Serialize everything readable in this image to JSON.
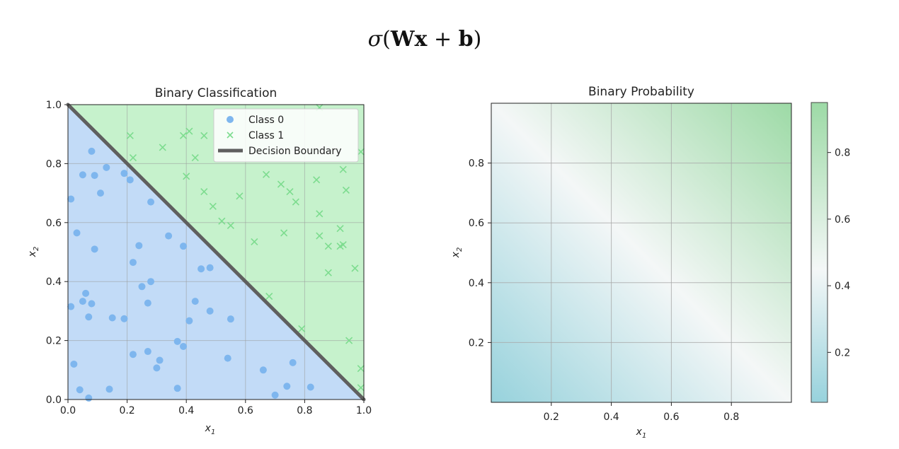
{
  "formula": {
    "sigma": "σ",
    "open": "(",
    "W": "W",
    "x": "x",
    "plus": " + ",
    "b": "b",
    "close": ")"
  },
  "colors": {
    "class0": "#7eb6ee",
    "class1": "#7ddc8f",
    "region0": "#c2dbf7",
    "region1": "#c6f2cc",
    "boundary": "#5f5f5f",
    "prob_low": "#97d2dc",
    "prob_mid": "#f4f7f7",
    "prob_high": "#9ddaa6"
  },
  "chart_data": [
    {
      "type": "scatter",
      "title": "Binary Classification",
      "xlabel": "x1",
      "ylabel": "x2",
      "xlim": [
        0.0,
        1.0
      ],
      "ylim": [
        0.0,
        1.0
      ],
      "xticks": [
        "0.0",
        "0.2",
        "0.4",
        "0.6",
        "0.8",
        "1.0"
      ],
      "yticks": [
        "0.0",
        "0.2",
        "0.4",
        "0.6",
        "0.8",
        "1.0"
      ],
      "grid": true,
      "legend_position": "top-right",
      "legend": [
        "Class 0",
        "Class 1",
        "Decision Boundary"
      ],
      "regions": [
        {
          "name": "Class 0",
          "below_line": true
        },
        {
          "name": "Class 1",
          "below_line": false
        }
      ],
      "decision_boundary": {
        "x": [
          0.0,
          1.0
        ],
        "y": [
          1.0,
          0.0
        ]
      },
      "series": [
        {
          "name": "Class 0",
          "marker": "circle",
          "points": [
            [
              0.01,
              0.68
            ],
            [
              0.03,
              0.565
            ],
            [
              0.05,
              0.762
            ],
            [
              0.08,
              0.842
            ],
            [
              0.09,
              0.76
            ],
            [
              0.11,
              0.7
            ],
            [
              0.13,
              0.787
            ],
            [
              0.19,
              0.767
            ],
            [
              0.21,
              0.745
            ],
            [
              0.28,
              0.67
            ],
            [
              0.09,
              0.51
            ],
            [
              0.22,
              0.465
            ],
            [
              0.24,
              0.522
            ],
            [
              0.34,
              0.555
            ],
            [
              0.39,
              0.52
            ],
            [
              0.45,
              0.443
            ],
            [
              0.48,
              0.447
            ],
            [
              0.25,
              0.383
            ],
            [
              0.28,
              0.4
            ],
            [
              0.06,
              0.36
            ],
            [
              0.01,
              0.315
            ],
            [
              0.05,
              0.333
            ],
            [
              0.08,
              0.325
            ],
            [
              0.07,
              0.28
            ],
            [
              0.15,
              0.277
            ],
            [
              0.19,
              0.274
            ],
            [
              0.27,
              0.327
            ],
            [
              0.43,
              0.333
            ],
            [
              0.48,
              0.3
            ],
            [
              0.41,
              0.267
            ],
            [
              0.55,
              0.273
            ],
            [
              0.37,
              0.197
            ],
            [
              0.39,
              0.18
            ],
            [
              0.27,
              0.163
            ],
            [
              0.22,
              0.153
            ],
            [
              0.31,
              0.133
            ],
            [
              0.3,
              0.107
            ],
            [
              0.54,
              0.14
            ],
            [
              0.66,
              0.1
            ],
            [
              0.76,
              0.125
            ],
            [
              0.02,
              0.12
            ],
            [
              0.04,
              0.033
            ],
            [
              0.07,
              0.005
            ],
            [
              0.14,
              0.035
            ],
            [
              0.37,
              0.038
            ],
            [
              0.7,
              0.015
            ],
            [
              0.74,
              0.045
            ],
            [
              0.82,
              0.042
            ]
          ]
        },
        {
          "name": "Class 1",
          "marker": "x",
          "points": [
            [
              0.21,
              0.895
            ],
            [
              0.22,
              0.82
            ],
            [
              0.32,
              0.855
            ],
            [
              0.39,
              0.895
            ],
            [
              0.41,
              0.91
            ],
            [
              0.46,
              0.895
            ],
            [
              0.43,
              0.82
            ],
            [
              0.4,
              0.757
            ],
            [
              0.46,
              0.705
            ],
            [
              0.58,
              0.69
            ],
            [
              0.67,
              0.763
            ],
            [
              0.72,
              0.73
            ],
            [
              0.75,
              0.705
            ],
            [
              0.77,
              0.67
            ],
            [
              0.84,
              0.745
            ],
            [
              0.85,
              0.99
            ],
            [
              0.93,
              0.78
            ],
            [
              0.94,
              0.71
            ],
            [
              0.49,
              0.655
            ],
            [
              0.52,
              0.605
            ],
            [
              0.55,
              0.59
            ],
            [
              0.85,
              0.63
            ],
            [
              0.85,
              0.555
            ],
            [
              0.88,
              0.52
            ],
            [
              0.92,
              0.52
            ],
            [
              0.93,
              0.525
            ],
            [
              0.92,
              0.58
            ],
            [
              0.73,
              0.565
            ],
            [
              0.63,
              0.535
            ],
            [
              0.97,
              0.445
            ],
            [
              0.88,
              0.43
            ],
            [
              0.68,
              0.35
            ],
            [
              0.79,
              0.24
            ],
            [
              0.95,
              0.2
            ],
            [
              0.99,
              0.105
            ],
            [
              0.99,
              0.04
            ],
            [
              0.99,
              0.84
            ]
          ]
        }
      ]
    },
    {
      "type": "heatmap",
      "title": "Binary Probability",
      "xlabel": "x1",
      "ylabel": "x2",
      "xlim": [
        0.0,
        1.0
      ],
      "ylim": [
        0.0,
        1.0
      ],
      "xticks": [
        "0.2",
        "0.4",
        "0.6",
        "0.8"
      ],
      "yticks": [
        "0.2",
        "0.4",
        "0.6",
        "0.8"
      ],
      "grid": true,
      "value_function": "sigmoid(x1 + x2 - 1) scaled",
      "value_at_origin": 0.05,
      "value_at_boundary": 0.45,
      "value_at_top_right": 0.95,
      "colorbar": {
        "range": [
          0.05,
          0.95
        ],
        "ticks": [
          "0.2",
          "0.4",
          "0.6",
          "0.8"
        ],
        "tick_values": [
          0.2,
          0.4,
          0.6,
          0.8
        ]
      }
    }
  ]
}
